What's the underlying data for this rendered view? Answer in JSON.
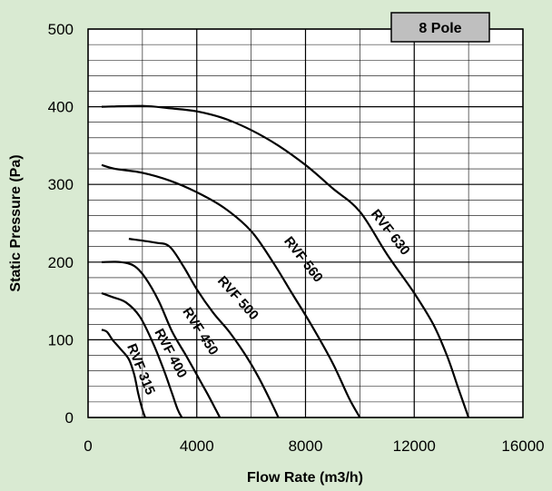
{
  "colors": {
    "background": "#d9ead2",
    "plot_background": "#ffffff",
    "grid": "#000000",
    "curves": "#000000",
    "badge_fill": "#bfbfbf"
  },
  "badge": {
    "label": "8 Pole"
  },
  "chart_data": {
    "type": "line",
    "title": "",
    "xlabel": "Flow Rate (m3/h)",
    "ylabel": "Static Pressure (Pa)",
    "xlim": [
      0,
      16000
    ],
    "ylim": [
      0,
      500
    ],
    "x_ticks": [
      0,
      4000,
      8000,
      12000,
      16000
    ],
    "y_ticks": [
      0,
      100,
      200,
      300,
      400,
      500
    ],
    "x_minor_step": 2000,
    "y_minor_step": 20,
    "grid": true,
    "series": [
      {
        "name": "RVF 315",
        "label_at": [
          1800,
          60
        ],
        "label_angle": 68,
        "points": [
          [
            500,
            113
          ],
          [
            700,
            110
          ],
          [
            900,
            100
          ],
          [
            1200,
            88
          ],
          [
            1500,
            75
          ],
          [
            1700,
            55
          ],
          [
            1850,
            30
          ],
          [
            2000,
            10
          ],
          [
            2100,
            0
          ]
        ]
      },
      {
        "name": "RVF 400",
        "label_at": [
          2900,
          80
        ],
        "label_angle": 62,
        "points": [
          [
            500,
            160
          ],
          [
            900,
            155
          ],
          [
            1400,
            148
          ],
          [
            1900,
            130
          ],
          [
            2400,
            95
          ],
          [
            2800,
            60
          ],
          [
            3100,
            30
          ],
          [
            3300,
            10
          ],
          [
            3450,
            0
          ]
        ]
      },
      {
        "name": "RVF 450",
        "label_at": [
          4000,
          108
        ],
        "label_angle": 57,
        "points": [
          [
            500,
            200
          ],
          [
            1200,
            200
          ],
          [
            1700,
            195
          ],
          [
            2100,
            180
          ],
          [
            2600,
            150
          ],
          [
            3100,
            110
          ],
          [
            3600,
            80
          ],
          [
            4000,
            55
          ],
          [
            4400,
            30
          ],
          [
            4700,
            10
          ],
          [
            4850,
            0
          ]
        ]
      },
      {
        "name": "RVF 500",
        "label_at": [
          5400,
          150
        ],
        "label_angle": 48,
        "points": [
          [
            1500,
            230
          ],
          [
            2500,
            225
          ],
          [
            3000,
            220
          ],
          [
            3500,
            195
          ],
          [
            4000,
            165
          ],
          [
            4600,
            135
          ],
          [
            5200,
            110
          ],
          [
            5800,
            80
          ],
          [
            6300,
            50
          ],
          [
            6800,
            15
          ],
          [
            7000,
            0
          ]
        ]
      },
      {
        "name": "RVF 560",
        "label_at": [
          7800,
          200
        ],
        "label_angle": 52,
        "points": [
          [
            500,
            325
          ],
          [
            1000,
            320
          ],
          [
            2000,
            315
          ],
          [
            3000,
            305
          ],
          [
            4000,
            290
          ],
          [
            5000,
            270
          ],
          [
            6000,
            240
          ],
          [
            6800,
            200
          ],
          [
            7500,
            160
          ],
          [
            8200,
            120
          ],
          [
            9000,
            70
          ],
          [
            9600,
            25
          ],
          [
            10000,
            0
          ]
        ]
      },
      {
        "name": "RVF 630",
        "label_at": [
          11000,
          235
        ],
        "label_angle": 52,
        "points": [
          [
            500,
            400
          ],
          [
            2000,
            401
          ],
          [
            3000,
            398
          ],
          [
            4000,
            394
          ],
          [
            5000,
            385
          ],
          [
            6000,
            370
          ],
          [
            7000,
            350
          ],
          [
            8000,
            325
          ],
          [
            9000,
            295
          ],
          [
            10000,
            265
          ],
          [
            11000,
            210
          ],
          [
            12000,
            160
          ],
          [
            12700,
            120
          ],
          [
            13200,
            80
          ],
          [
            13600,
            40
          ],
          [
            14000,
            0
          ]
        ]
      }
    ]
  }
}
